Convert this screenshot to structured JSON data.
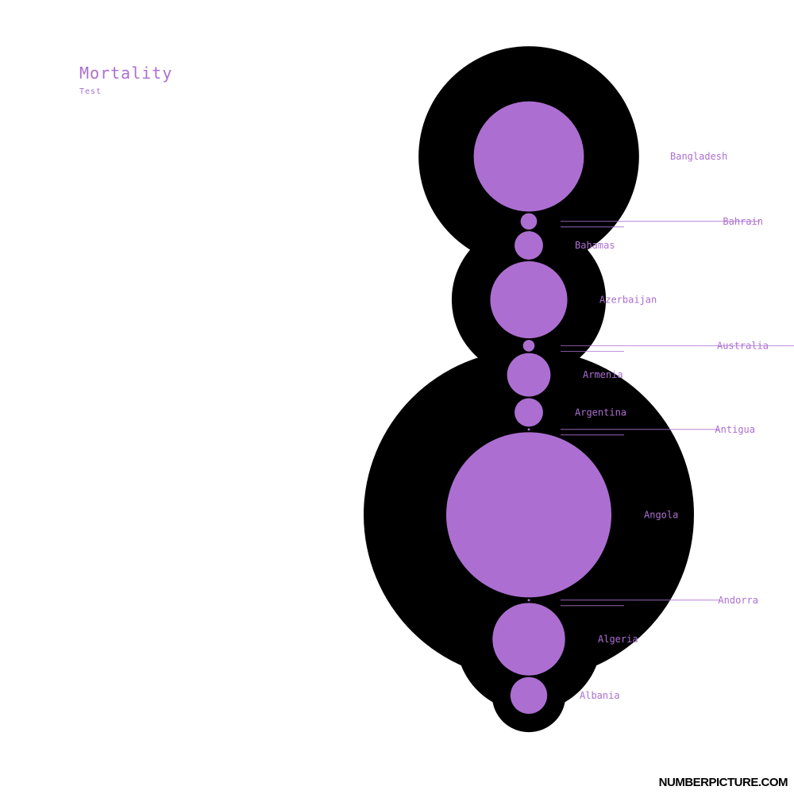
{
  "chart_data": {
    "type": "bubble",
    "title": "Mortality",
    "subtitle": "Test",
    "colors": {
      "accent": "#AC6FD1",
      "halo": "#000000",
      "background": "#ffffff"
    },
    "series": [
      {
        "name": "Mortality",
        "categories": [
          "Albania",
          "Algeria",
          "Andorra",
          "Angola",
          "Antigua",
          "Argentina",
          "Armenia",
          "Australia",
          "Azerbaijan",
          "Bahamas",
          "Bahrain",
          "Bangladesh"
        ],
        "values": [
          1.0,
          3.9,
          0.0,
          20.2,
          0.0,
          0.6,
          1.4,
          0.1,
          4.4,
          0.6,
          0.2,
          9.0
        ]
      }
    ]
  },
  "brand": "NUMBERPICTURE.COM"
}
